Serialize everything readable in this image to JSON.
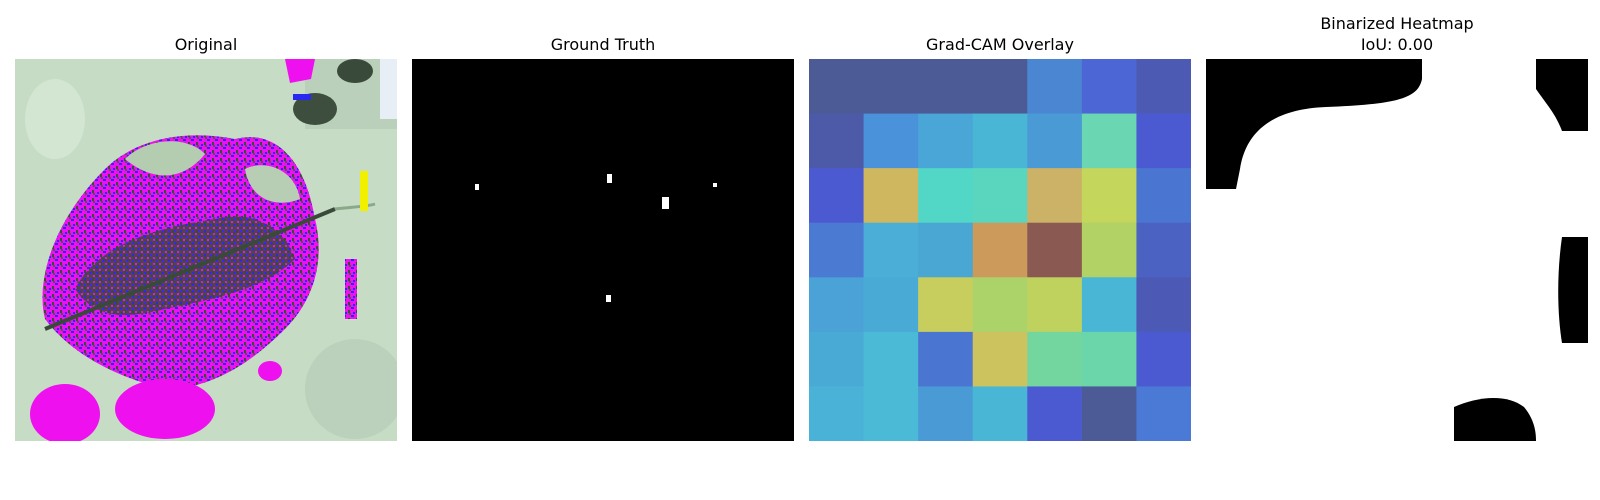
{
  "panels": [
    {
      "title": "Original"
    },
    {
      "title": "Ground Truth"
    },
    {
      "title": "Grad-CAM Overlay"
    },
    {
      "title": "Binarized Heatmap",
      "subtitle": "IoU: 0.00"
    }
  ],
  "gradcam": {
    "grid": [
      [
        "#4c5a96",
        "#4c5a96",
        "#4c5a96",
        "#4c5a96",
        "#4a86d2",
        "#4c66d6",
        "#4c5ab4"
      ],
      [
        "#4c5aa8",
        "#4a92da",
        "#4aa6d6",
        "#4ab6d6",
        "#4a9ad6",
        "#6ad6b2",
        "#4c5ad2"
      ],
      [
        "#4c5ad2",
        "#cfb760",
        "#52d6c6",
        "#5ad6be",
        "#ccb266",
        "#c4d65c",
        "#4a76d2"
      ],
      [
        "#4a7ad2",
        "#4aaed6",
        "#4aa6d2",
        "#cc9a5a",
        "#8a5a52",
        "#b2d266",
        "#4c62c2"
      ],
      [
        "#4aa2d6",
        "#4aaad6",
        "#c8ce5e",
        "#acd26a",
        "#c0d25e",
        "#4ab6d6",
        "#4c5ab6"
      ],
      [
        "#4aaad6",
        "#4abad6",
        "#4a76d2",
        "#ccc25e",
        "#72d69e",
        "#6ad6aa",
        "#4c5ad2"
      ],
      [
        "#4ab2d6",
        "#4abad6",
        "#4a9ad6",
        "#4ab6d6",
        "#4c5ad2",
        "#4c5a96",
        "#4a7ad6"
      ]
    ]
  },
  "colors": {
    "magenta": "#ff00ff",
    "background_green": "#c4dcc4",
    "blue": "#2a2aff",
    "dark": "#3a4a3a"
  }
}
